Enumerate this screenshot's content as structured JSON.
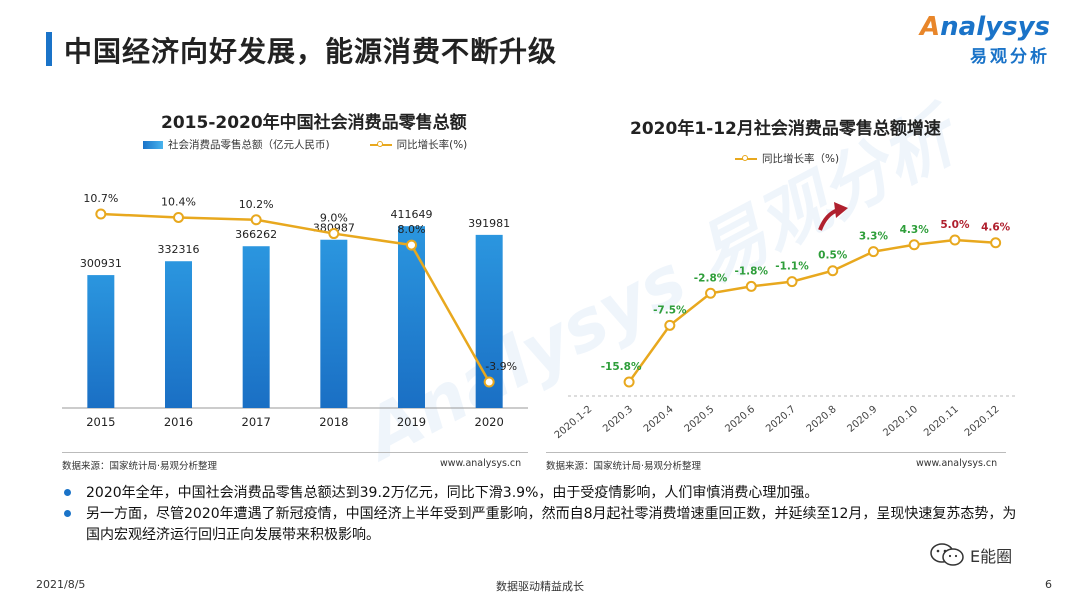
{
  "header": {
    "title": "中国经济向好发展，能源消费不断升级",
    "brand_logo": "nalysys",
    "brand_logo_mark": "A",
    "brand_sub": "易观分析"
  },
  "watermark": "Analysys 易观分析",
  "colors": {
    "accent": "#1a73c8",
    "bar": "#2b96df",
    "line": "#e8a81e",
    "positive": "#2e9e3a",
    "negative": "#2e9e3a",
    "highlight": "#b0202e"
  },
  "chart_data": [
    {
      "type": "bar",
      "title": "2015-2020年中国社会消费品零售总额",
      "categories": [
        "2015",
        "2016",
        "2017",
        "2018",
        "2019",
        "2020"
      ],
      "series": [
        {
          "name": "社会消费品零售总额（亿元人民币)",
          "type": "bar",
          "values": [
            300931,
            332316,
            366262,
            380987,
            411649,
            391981
          ],
          "labels": [
            "300931",
            "332316",
            "366262",
            "380987",
            "411649",
            "391981"
          ]
        },
        {
          "name": "同比增长率(%)",
          "type": "line",
          "values": [
            10.7,
            10.4,
            10.2,
            9.0,
            8.0,
            -3.9
          ],
          "labels": [
            "10.7%",
            "10.4%",
            "10.2%",
            "9.0%",
            "8.0%",
            "-3.9%"
          ]
        }
      ],
      "legend": "top",
      "source": "数据来源：国家统计局·易观分析整理",
      "source_url": "www.analysys.cn"
    },
    {
      "type": "line",
      "title": "2020年1-12月社会消费品零售总额增速",
      "categories": [
        "2020.1-2",
        "2020.3",
        "2020.4",
        "2020.5",
        "2020.6",
        "2020.7",
        "2020.8",
        "2020.9",
        "2020.10",
        "2020.11",
        "2020.12"
      ],
      "series": [
        {
          "name": "同比增长率（%)",
          "values": [
            null,
            -15.8,
            -7.5,
            -2.8,
            -1.8,
            -1.1,
            0.5,
            3.3,
            4.3,
            5.0,
            4.6
          ],
          "labels": [
            "",
            "-15.8%",
            "-7.5%",
            "-2.8%",
            "-1.8%",
            "-1.1%",
            "0.5%",
            "3.3%",
            "4.3%",
            "5.0%",
            "4.6%"
          ]
        }
      ],
      "legend": "top",
      "source": "数据来源：国家统计局·易观分析整理",
      "source_url": "www.analysys.cn"
    }
  ],
  "bullets": [
    "2020年全年，中国社会消费品零售总额达到39.2万亿元，同比下滑3.9%，由于受疫情影响，人们审慎消费心理加强。",
    "另一方面，尽管2020年遭遇了新冠疫情，中国经济上半年受到严重影响，然而自8月起社零消费增速重回正数，并延续至12月，呈现快速复苏态势，为国内宏观经济运行回归正向发展带来积极影响。"
  ],
  "footer": {
    "date": "2021/8/5",
    "center": "数据驱动精益成长",
    "page": "6",
    "wechat": "E能圈"
  }
}
